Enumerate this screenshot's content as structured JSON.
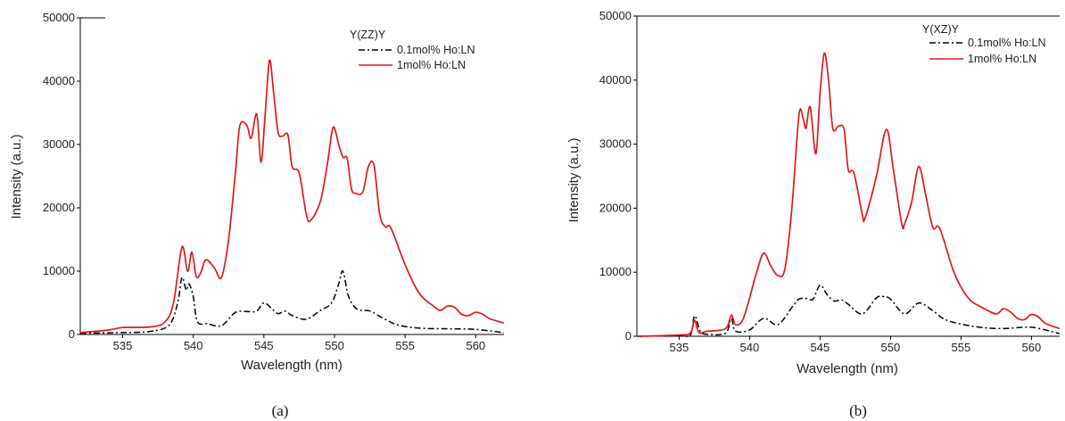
{
  "chart_data": [
    {
      "type": "line",
      "panel_label": "(a)",
      "xlabel": "Wavelength (nm)",
      "ylabel": "Intensity (a.u.)",
      "xlim": [
        532,
        562
      ],
      "ylim": [
        0,
        50000
      ],
      "x_ticks": [
        535,
        540,
        545,
        550,
        555,
        560
      ],
      "y_ticks": [
        0,
        10000,
        20000,
        30000,
        40000,
        50000
      ],
      "legend_title": "Y(ZZ)Y",
      "legend_position": "top-right",
      "series": [
        {
          "name": "0.1mol% Ho:LN",
          "color": "#000000",
          "style": "dash-dot",
          "points": [
            [
              532,
              200
            ],
            [
              535,
              300
            ],
            [
              537,
              500
            ],
            [
              538.3,
              1500
            ],
            [
              538.9,
              5000
            ],
            [
              539.2,
              9000
            ],
            [
              539.5,
              7000
            ],
            [
              539.7,
              8000
            ],
            [
              540,
              6000
            ],
            [
              540.3,
              2000
            ],
            [
              541,
              1700
            ],
            [
              542,
              1400
            ],
            [
              543,
              3500
            ],
            [
              544,
              3600
            ],
            [
              544.5,
              3700
            ],
            [
              545,
              5000
            ],
            [
              545.5,
              4200
            ],
            [
              546,
              3300
            ],
            [
              546.5,
              3700
            ],
            [
              547,
              3000
            ],
            [
              548,
              2400
            ],
            [
              549,
              3800
            ],
            [
              549.8,
              5000
            ],
            [
              550.3,
              8000
            ],
            [
              550.6,
              10000
            ],
            [
              551,
              6000
            ],
            [
              551.6,
              4000
            ],
            [
              552.5,
              3700
            ],
            [
              553.5,
              2500
            ],
            [
              554.5,
              1500
            ],
            [
              556,
              1000
            ],
            [
              558,
              900
            ],
            [
              560,
              800
            ],
            [
              562,
              300
            ]
          ]
        },
        {
          "name": "1mol% Ho:LN",
          "color": "#e0191b",
          "style": "solid",
          "points": [
            [
              532,
              300
            ],
            [
              534,
              700
            ],
            [
              535,
              1100
            ],
            [
              537,
              1200
            ],
            [
              538,
              2000
            ],
            [
              538.6,
              5000
            ],
            [
              539.2,
              13800
            ],
            [
              539.6,
              10000
            ],
            [
              539.9,
              13000
            ],
            [
              540.2,
              9200
            ],
            [
              540.5,
              9600
            ],
            [
              540.9,
              11800
            ],
            [
              541.5,
              10500
            ],
            [
              542,
              9000
            ],
            [
              542.5,
              15000
            ],
            [
              543,
              26000
            ],
            [
              543.3,
              33000
            ],
            [
              543.8,
              33000
            ],
            [
              544.1,
              31000
            ],
            [
              544.5,
              34800
            ],
            [
              544.8,
              27200
            ],
            [
              545.1,
              35000
            ],
            [
              545.4,
              43300
            ],
            [
              545.7,
              38000
            ],
            [
              546,
              32000
            ],
            [
              546.3,
              31300
            ],
            [
              546.7,
              31500
            ],
            [
              547,
              26500
            ],
            [
              547.5,
              25500
            ],
            [
              548,
              19000
            ],
            [
              548.3,
              18000
            ],
            [
              549,
              21000
            ],
            [
              549.5,
              27000
            ],
            [
              549.9,
              32700
            ],
            [
              550.3,
              30000
            ],
            [
              550.6,
              28000
            ],
            [
              550.9,
              27800
            ],
            [
              551.2,
              23000
            ],
            [
              551.5,
              22300
            ],
            [
              552,
              22500
            ],
            [
              552.4,
              26500
            ],
            [
              552.8,
              26700
            ],
            [
              553.2,
              19000
            ],
            [
              553.6,
              17000
            ],
            [
              554,
              16800
            ],
            [
              555,
              11000
            ],
            [
              556,
              6500
            ],
            [
              557,
              4500
            ],
            [
              557.5,
              3800
            ],
            [
              558,
              4500
            ],
            [
              558.5,
              4300
            ],
            [
              559,
              3200
            ],
            [
              559.5,
              3000
            ],
            [
              560,
              3500
            ],
            [
              560.5,
              3200
            ],
            [
              561,
              2500
            ],
            [
              562,
              1800
            ]
          ]
        }
      ]
    },
    {
      "type": "line",
      "panel_label": "(b)",
      "xlabel": "Wavelength (nm)",
      "ylabel": "Intensity (a.u.)",
      "xlim": [
        532,
        562
      ],
      "ylim": [
        0,
        50000
      ],
      "x_ticks": [
        535,
        540,
        545,
        550,
        555,
        560
      ],
      "y_ticks": [
        0,
        10000,
        20000,
        30000,
        40000,
        50000
      ],
      "legend_title": "Y(XZ)Y",
      "legend_position": "top-right",
      "series": [
        {
          "name": "0.1mol% Ho:LN",
          "color": "#000000",
          "style": "dash-dot",
          "points": [
            [
              532,
              0
            ],
            [
              535,
              100
            ],
            [
              535.8,
              200
            ],
            [
              536.1,
              3200
            ],
            [
              536.5,
              800
            ],
            [
              537,
              300
            ],
            [
              538.3,
              500
            ],
            [
              538.7,
              2800
            ],
            [
              539,
              800
            ],
            [
              540,
              1000
            ],
            [
              541,
              2800
            ],
            [
              542,
              1800
            ],
            [
              543,
              4500
            ],
            [
              543.5,
              5800
            ],
            [
              544,
              5900
            ],
            [
              544.5,
              5800
            ],
            [
              545,
              8000
            ],
            [
              545.5,
              6500
            ],
            [
              546,
              5500
            ],
            [
              546.5,
              5700
            ],
            [
              547,
              5000
            ],
            [
              548,
              3500
            ],
            [
              549,
              6000
            ],
            [
              549.5,
              6200
            ],
            [
              550,
              5800
            ],
            [
              551,
              3500
            ],
            [
              552,
              5200
            ],
            [
              553,
              4000
            ],
            [
              554,
              2500
            ],
            [
              556,
              1500
            ],
            [
              558,
              1200
            ],
            [
              560,
              1400
            ],
            [
              562,
              400
            ]
          ]
        },
        {
          "name": "1mol% Ho:LN",
          "color": "#e0191b",
          "style": "solid",
          "points": [
            [
              532,
              0
            ],
            [
              535,
              200
            ],
            [
              535.8,
              500
            ],
            [
              536.1,
              2500
            ],
            [
              536.4,
              600
            ],
            [
              537,
              800
            ],
            [
              538.3,
              1200
            ],
            [
              538.7,
              3300
            ],
            [
              539,
              1800
            ],
            [
              539.5,
              2500
            ],
            [
              540,
              6000
            ],
            [
              540.5,
              10000
            ],
            [
              541,
              13000
            ],
            [
              541.5,
              11000
            ],
            [
              542,
              9500
            ],
            [
              542.5,
              10500
            ],
            [
              543,
              20000
            ],
            [
              543.5,
              34500
            ],
            [
              543.8,
              34000
            ],
            [
              544,
              32500
            ],
            [
              544.3,
              35800
            ],
            [
              544.7,
              28500
            ],
            [
              545,
              38000
            ],
            [
              545.3,
              44200
            ],
            [
              545.6,
              40000
            ],
            [
              545.9,
              32500
            ],
            [
              546.3,
              32800
            ],
            [
              546.7,
              32300
            ],
            [
              547,
              26000
            ],
            [
              547.4,
              25500
            ],
            [
              548,
              19000
            ],
            [
              548.2,
              18500
            ],
            [
              549,
              25000
            ],
            [
              549.7,
              32300
            ],
            [
              550.2,
              26000
            ],
            [
              550.8,
              17500
            ],
            [
              551,
              17600
            ],
            [
              551.5,
              21000
            ],
            [
              552,
              26500
            ],
            [
              552.5,
              22000
            ],
            [
              553,
              17000
            ],
            [
              553.5,
              16800
            ],
            [
              554.5,
              10000
            ],
            [
              555.5,
              6000
            ],
            [
              556.5,
              4500
            ],
            [
              557.5,
              3500
            ],
            [
              558,
              4300
            ],
            [
              558.5,
              3800
            ],
            [
              559,
              2800
            ],
            [
              559.5,
              2600
            ],
            [
              560,
              3400
            ],
            [
              560.5,
              3000
            ],
            [
              561,
              2000
            ],
            [
              562,
              1200
            ]
          ]
        }
      ]
    }
  ]
}
